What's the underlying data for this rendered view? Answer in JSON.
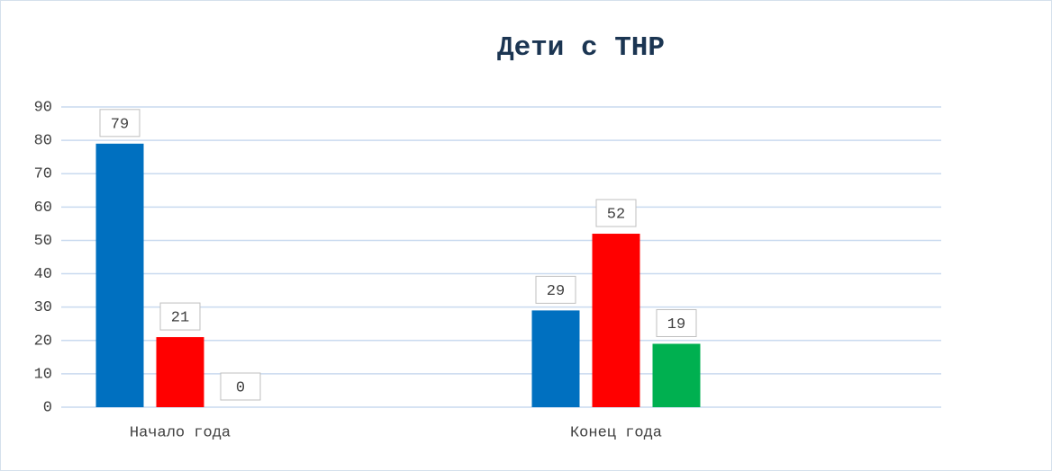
{
  "chart_data": {
    "type": "bar",
    "title": "Дети с ТНР",
    "categories": [
      "Начало года",
      "Конец года"
    ],
    "series": [
      {
        "color": "#0070c0",
        "values": [
          79,
          29
        ]
      },
      {
        "color": "#ff0000",
        "values": [
          21,
          52
        ]
      },
      {
        "color": "#00b050",
        "values": [
          0,
          19
        ]
      }
    ],
    "ylim": [
      0,
      90
    ],
    "yticks": [
      0,
      10,
      20,
      30,
      40,
      50,
      60,
      70,
      80,
      90
    ],
    "grid": true
  }
}
